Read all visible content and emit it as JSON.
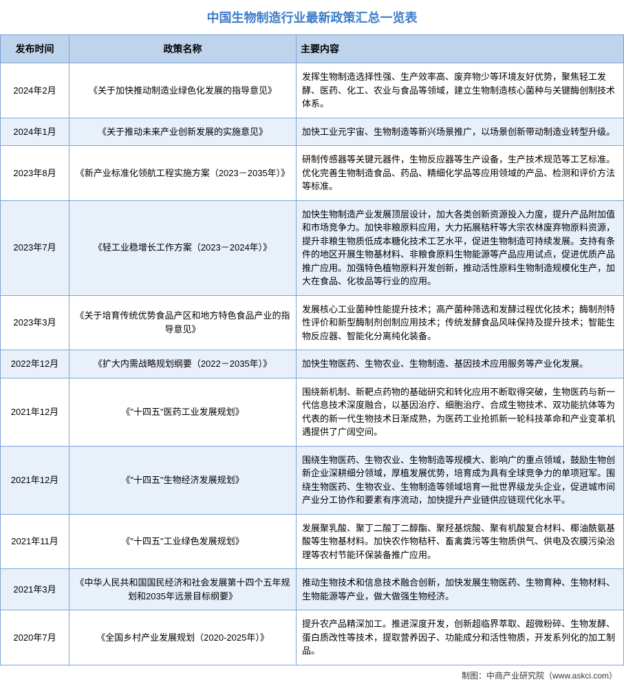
{
  "title": "中国生物制造行业最新政策汇总一览表",
  "columns": [
    "发布时间",
    "政策名称",
    "主要内容"
  ],
  "footer": "制图：中商产业研究院（www.askci.com）",
  "colors": {
    "title_color": "#3b7cc9",
    "header_bg": "#bed3ec",
    "border": "#7ba4d4",
    "row_odd_bg": "#ffffff",
    "row_even_bg": "#e8f0fa"
  },
  "rows": [
    {
      "date": "2024年2月",
      "name": "《关于加快推动制造业绿色化发展的指导意见》",
      "content": "发挥生物制造选择性强、生产效率高、废弃物少等环境友好优势，聚焦轻工发酵、医药、化工、农业与食品等领域，建立生物制造核心菌种与关键酶创制技术体系。"
    },
    {
      "date": "2024年1月",
      "name": "《关于推动未来产业创新发展的实施意见》",
      "content": "加快工业元宇宙、生物制造等新兴场景推广，以场景创新带动制造业转型升级。"
    },
    {
      "date": "2023年8月",
      "name": "《新产业标准化领航工程实施方案（2023－2035年）》",
      "content": "研制传感器等关键元器件，生物反应器等生产设备，生产技术规范等工艺标准。优化完善生物制造食品、药品、精细化学品等应用领域的产品、检测和评价方法等标准。"
    },
    {
      "date": "2023年7月",
      "name": "《轻工业稳增长工作方案（2023－2024年）》",
      "content": "加快生物制造产业发展顶层设计，加大各类创新资源投入力度，提升产品附加值和市场竞争力。加快非粮原料应用，大力拓展秸秆等大宗农林废弃物原料资源，提升非粮生物质低成本糖化技术工艺水平，促进生物制造可持续发展。支持有条件的地区开展生物基材料、非粮食原料生物能源等产品应用试点，促进优质产品推广应用。加强特色植物原料开发创新，推动活性原料生物制造规模化生产，加大在食品、化妆品等行业的应用。"
    },
    {
      "date": "2023年3月",
      "name": "《关于培育传统优势食品产区和地方特色食品产业的指导意见》",
      "content": "发展核心工业菌种性能提升技术；高产菌种筛选和发酵过程优化技术；酶制剂特性评价和新型酶制剂创制应用技术；传统发酵食品风味保持及提升技术；智能生物反应器、智能化分离纯化装备。"
    },
    {
      "date": "2022年12月",
      "name": "《扩大内需战略规划纲要（2022－2035年）》",
      "content": "加快生物医药、生物农业、生物制造、基因技术应用服务等产业化发展。"
    },
    {
      "date": "2021年12月",
      "name": "《\"十四五\"医药工业发展规划》",
      "content": "围绕新机制、新靶点药物的基础研究和转化应用不断取得突破，生物医药与新一代信息技术深度融合，以基因治疗、细胞治疗、合成生物技术、双功能抗体等为代表的新一代生物技术日渐成熟，为医药工业抢抓新一轮科技革命和产业变革机遇提供了广阔空间。"
    },
    {
      "date": "2021年12月",
      "name": "《\"十四五\"生物经济发展规划》",
      "content": "围绕生物医药、生物农业、生物制造等规模大、影响广的重点领域，鼓励生物创新企业深耕细分领域，厚植发展优势，培育成为具有全球竞争力的单项冠军。围绕生物医药、生物农业、生物制造等领域培育一批世界级龙头企业，促进城市间产业分工协作和要素有序流动，加快提升产业链供应链现代化水平。"
    },
    {
      "date": "2021年11月",
      "name": "《\"十四五\"工业绿色发展规划》",
      "content": "发展聚乳酸、聚丁二酸丁二醇酯、聚羟基烷酸、聚有机酸复合材料、椰油酰氨基酸等生物基材料。加快农作物秸秆、畜禽粪污等生物质供气、供电及农膜污染治理等农村节能环保装备推广应用。"
    },
    {
      "date": "2021年3月",
      "name": "《中华人民共和国国民经济和社会发展第十四个五年规划和2035年远景目标纲要》",
      "content": "推动生物技术和信息技术融合创新，加快发展生物医药、生物育种、生物材料、生物能源等产业，做大做强生物经济。"
    },
    {
      "date": "2020年7月",
      "name": "《全国乡村产业发展规划（2020-2025年）》",
      "content": "提升农产品精深加工。推进深度开发，创新超临界萃取、超微粉碎、生物发酵、蛋白质改性等技术，提取营养因子、功能成分和活性物质，开发系列化的加工制品。"
    }
  ]
}
